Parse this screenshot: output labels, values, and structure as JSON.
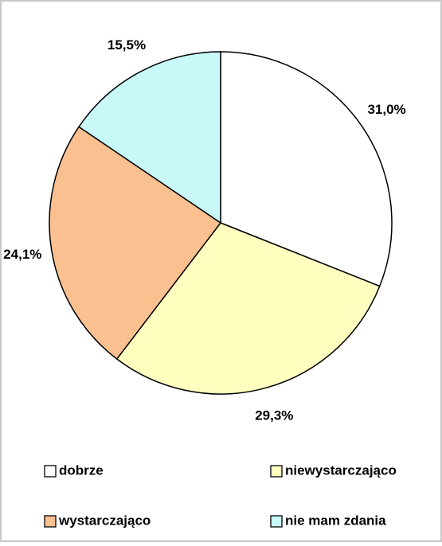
{
  "chart_data": {
    "type": "pie",
    "categories": [
      "dobrze",
      "niewystarczająco",
      "wystarczająco",
      "nie mam zdania"
    ],
    "values": [
      31.0,
      29.3,
      24.1,
      15.5
    ],
    "value_labels": [
      "31,0%",
      "29,3%",
      "24,1%",
      "15,5%"
    ],
    "colors": [
      "#ffffff",
      "#ffffc0",
      "#fac090",
      "#c8f8f8"
    ],
    "legend": "bottom"
  }
}
